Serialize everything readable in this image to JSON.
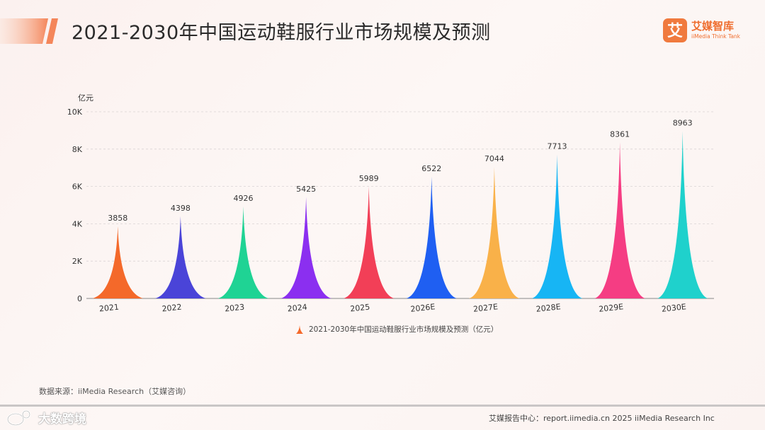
{
  "header": {
    "title": "2021-2030年中国运动鞋服行业市场规模及预测",
    "brand_cn": "艾媒智库",
    "brand_en": "iiMedia Think Tank",
    "brand_glyph": "艾"
  },
  "chart_data": {
    "type": "bar",
    "title": "2021-2030年中国运动鞋服行业市场规模及预测",
    "ylabel": "亿元",
    "xlabel": "",
    "ylim": [
      0,
      10000
    ],
    "yticks": [
      {
        "value": 0,
        "label": "0"
      },
      {
        "value": 2000,
        "label": "2K"
      },
      {
        "value": 4000,
        "label": "4K"
      },
      {
        "value": 6000,
        "label": "6K"
      },
      {
        "value": 8000,
        "label": "8K"
      },
      {
        "value": 10000,
        "label": "10K"
      }
    ],
    "categories": [
      "2021",
      "2022",
      "2023",
      "2024",
      "2025",
      "2026E",
      "2027E",
      "2028E",
      "2029E",
      "2030E"
    ],
    "series": [
      {
        "name": "2021-2030年中国运动鞋服行业市场规模及预测（亿元）",
        "values": [
          3858,
          4398,
          4926,
          5425,
          5989,
          6522,
          7044,
          7713,
          8361,
          8963
        ]
      }
    ],
    "colors": [
      "#f4692a",
      "#4a44d8",
      "#1fd394",
      "#8b2ff0",
      "#f23f57",
      "#1f5ff2",
      "#f9b149",
      "#17b5f4",
      "#f53d83",
      "#1fd1cc"
    ],
    "grid": true,
    "legend_position": "bottom",
    "legend_color": "#f4692a"
  },
  "footer": {
    "source": "数据来源：iiMedia Research（艾媒咨询）",
    "right": "艾媒报告中心：report.iimedia.cn  2025 iiMedia Research Inc",
    "watermark": "大数跨境",
    "watermark_icon": "weibo-like-icon"
  }
}
